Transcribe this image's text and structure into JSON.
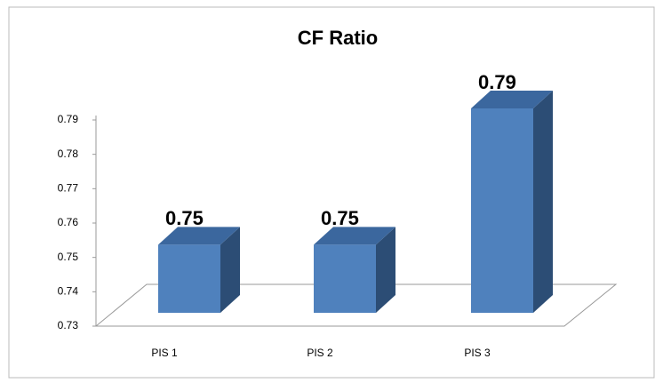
{
  "chart_data": {
    "type": "bar3d",
    "title": "CF Ratio",
    "categories": [
      "PIS 1",
      "PIS 2",
      "PIS 3"
    ],
    "values": [
      0.75,
      0.75,
      0.79
    ],
    "color": "#4f81bd",
    "ylim": [
      0.73,
      0.79
    ],
    "yticks": [
      0.73,
      0.74,
      0.75,
      0.76,
      0.77,
      0.78,
      0.79
    ]
  }
}
